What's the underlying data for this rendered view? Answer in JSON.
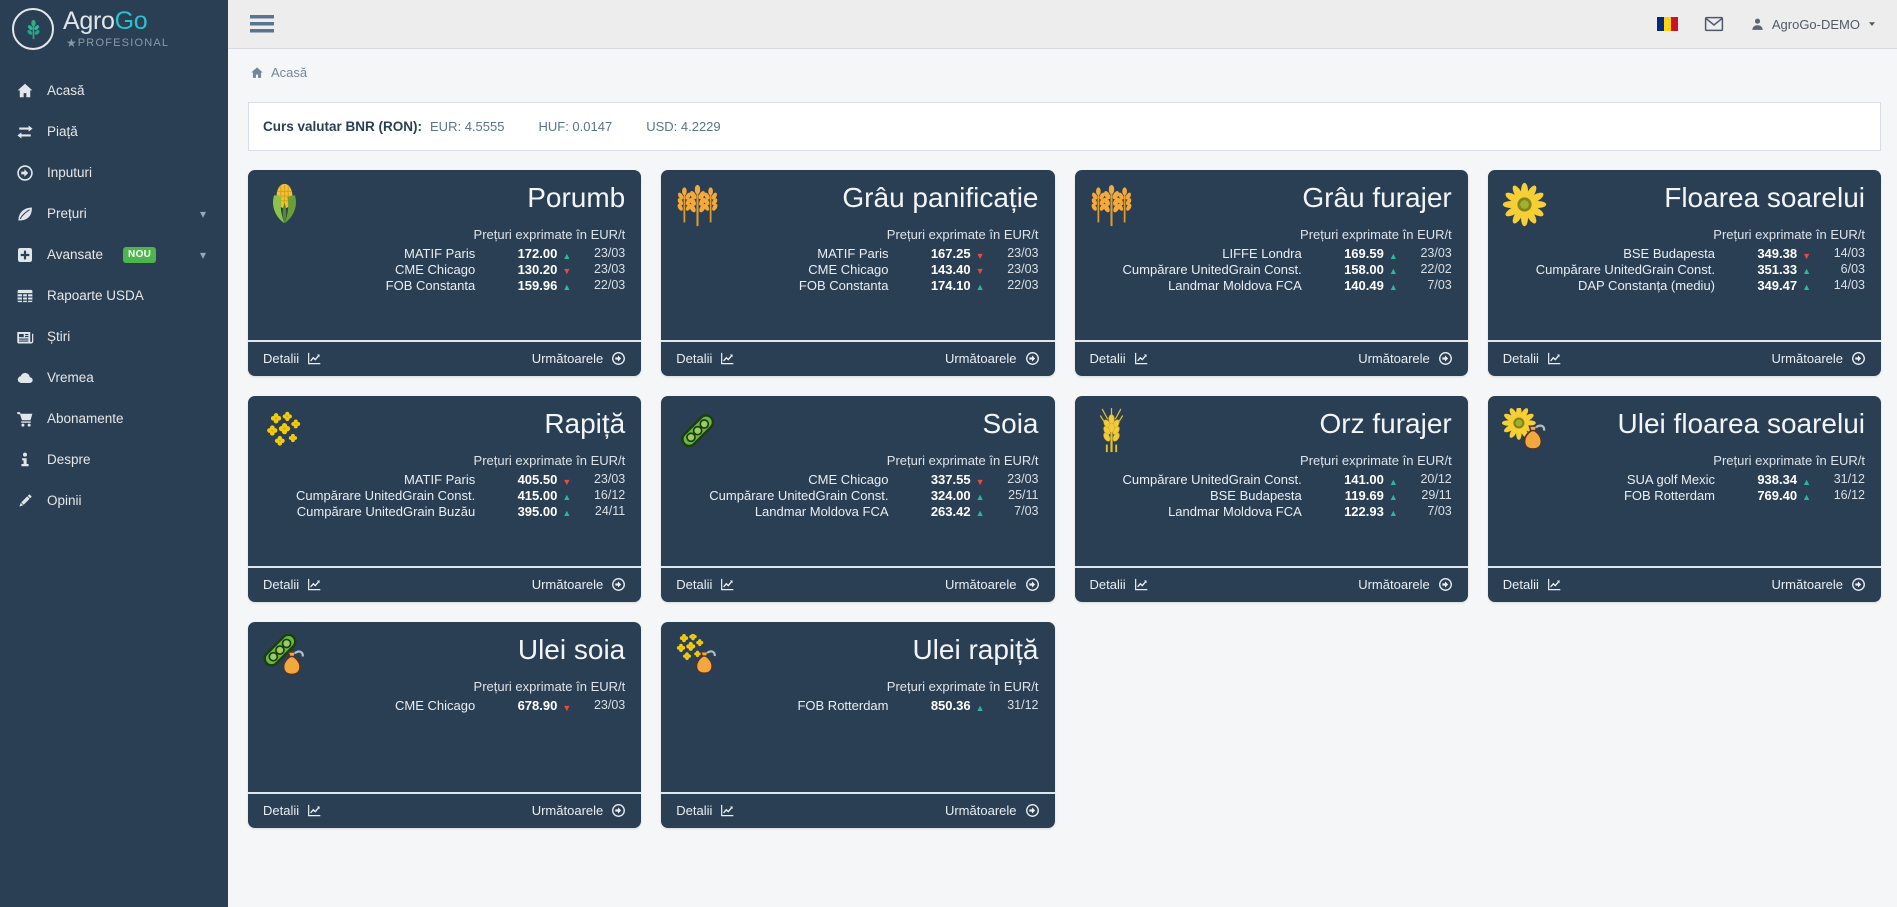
{
  "app": {
    "name_primary": "Agro",
    "name_accent": "Go",
    "tagline": "PROFESIONAL",
    "star_glyph": "★"
  },
  "topbar": {
    "user": "AgroGo-DEMO",
    "icons": [
      "menu-icon",
      "romania-flag-icon",
      "mail-icon",
      "user-icon",
      "caret-down-icon"
    ]
  },
  "colors": {
    "sidebar_bg": "#2A3F54",
    "card_bg": "#2A3F54",
    "accent_teal": "#2BC1CE",
    "trend_up": "#26B99A",
    "trend_down": "#E74C3C",
    "badge_green": "#4CB64C",
    "topbar_bg": "#EDEDED"
  },
  "sidebar": {
    "items": [
      {
        "icon": "home",
        "label": "Acasă"
      },
      {
        "icon": "exchange",
        "label": "Piață"
      },
      {
        "icon": "arrow-circle",
        "label": "Inputuri"
      },
      {
        "icon": "leaf",
        "label": "Prețuri",
        "chevron": true
      },
      {
        "icon": "plus-square",
        "label": "Avansate",
        "badge": "NOU",
        "chevron": true
      },
      {
        "icon": "table",
        "label": "Rapoarte USDA"
      },
      {
        "icon": "newspaper",
        "label": "Știri"
      },
      {
        "icon": "cloud",
        "label": "Vremea"
      },
      {
        "icon": "cart",
        "label": "Abonamente"
      },
      {
        "icon": "info",
        "label": "Despre"
      },
      {
        "icon": "pencil",
        "label": "Opinii"
      }
    ]
  },
  "breadcrumb": {
    "home_label": "Acasă"
  },
  "currency": {
    "label": "Curs valutar BNR (RON):",
    "rates": [
      {
        "code": "EUR",
        "value": "4.5555"
      },
      {
        "code": "HUF",
        "value": "0.0147"
      },
      {
        "code": "USD",
        "value": "4.2229"
      }
    ]
  },
  "card_labels": {
    "subtitle": "Prețuri exprimate în EUR/t",
    "details": "Detalii",
    "next": "Următoarele"
  },
  "cards": [
    {
      "title": "Porumb",
      "icon": "corn",
      "rows": [
        {
          "market": "MATIF Paris",
          "value": "172.00",
          "trend": "up",
          "date": "23/03"
        },
        {
          "market": "CME Chicago",
          "value": "130.20",
          "trend": "down",
          "date": "23/03"
        },
        {
          "market": "FOB Constanta",
          "value": "159.96",
          "trend": "up",
          "date": "22/03"
        }
      ]
    },
    {
      "title": "Grâu panificație",
      "icon": "wheat",
      "rows": [
        {
          "market": "MATIF Paris",
          "value": "167.25",
          "trend": "down",
          "date": "23/03"
        },
        {
          "market": "CME Chicago",
          "value": "143.40",
          "trend": "down",
          "date": "23/03"
        },
        {
          "market": "FOB Constanta",
          "value": "174.10",
          "trend": "up",
          "date": "22/03"
        }
      ]
    },
    {
      "title": "Grâu furajer",
      "icon": "wheat",
      "rows": [
        {
          "market": "LIFFE Londra",
          "value": "169.59",
          "trend": "up",
          "date": "23/03"
        },
        {
          "market": "Cumpărare UnitedGrain Const.",
          "value": "158.00",
          "trend": "up",
          "date": "22/02"
        },
        {
          "market": "Landmar Moldova FCA",
          "value": "140.49",
          "trend": "up",
          "date": "7/03"
        }
      ]
    },
    {
      "title": "Floarea soarelui",
      "icon": "sunflower",
      "rows": [
        {
          "market": "BSE Budapesta",
          "value": "349.38",
          "trend": "down",
          "date": "14/03"
        },
        {
          "market": "Cumpărare UnitedGrain Const.",
          "value": "351.33",
          "trend": "up",
          "date": "6/03"
        },
        {
          "market": "DAP Constanța (mediu)",
          "value": "349.47",
          "trend": "up",
          "date": "14/03"
        }
      ]
    },
    {
      "title": "Rapiță",
      "icon": "rapeseed",
      "rows": [
        {
          "market": "MATIF Paris",
          "value": "405.50",
          "trend": "down",
          "date": "23/03"
        },
        {
          "market": "Cumpărare UnitedGrain Const.",
          "value": "415.00",
          "trend": "up",
          "date": "16/12"
        },
        {
          "market": "Cumpărare UnitedGrain Buzău",
          "value": "395.00",
          "trend": "up",
          "date": "24/11"
        }
      ]
    },
    {
      "title": "Soia",
      "icon": "soypod",
      "rows": [
        {
          "market": "CME Chicago",
          "value": "337.55",
          "trend": "down",
          "date": "23/03"
        },
        {
          "market": "Cumpărare UnitedGrain Const.",
          "value": "324.00",
          "trend": "up",
          "date": "25/11"
        },
        {
          "market": "Landmar Moldova FCA",
          "value": "263.42",
          "trend": "up",
          "date": "7/03"
        }
      ]
    },
    {
      "title": "Orz furajer",
      "icon": "barley",
      "rows": [
        {
          "market": "Cumpărare UnitedGrain Const.",
          "value": "141.00",
          "trend": "up",
          "date": "20/12"
        },
        {
          "market": "BSE Budapesta",
          "value": "119.69",
          "trend": "up",
          "date": "29/11"
        },
        {
          "market": "Landmar Moldova FCA",
          "value": "122.93",
          "trend": "up",
          "date": "7/03"
        }
      ]
    },
    {
      "title": "Ulei floarea soarelui",
      "icon": "sunflower-oil",
      "rows": [
        {
          "market": "SUA golf Mexic",
          "value": "938.34",
          "trend": "up",
          "date": "31/12"
        },
        {
          "market": "FOB Rotterdam",
          "value": "769.40",
          "trend": "up",
          "date": "16/12"
        }
      ]
    },
    {
      "title": "Ulei soia",
      "icon": "soy-oil",
      "rows": [
        {
          "market": "CME Chicago",
          "value": "678.90",
          "trend": "down",
          "date": "23/03"
        }
      ]
    },
    {
      "title": "Ulei rapiță",
      "icon": "rape-oil",
      "rows": [
        {
          "market": "FOB Rotterdam",
          "value": "850.36",
          "trend": "up",
          "date": "31/12"
        }
      ]
    }
  ]
}
